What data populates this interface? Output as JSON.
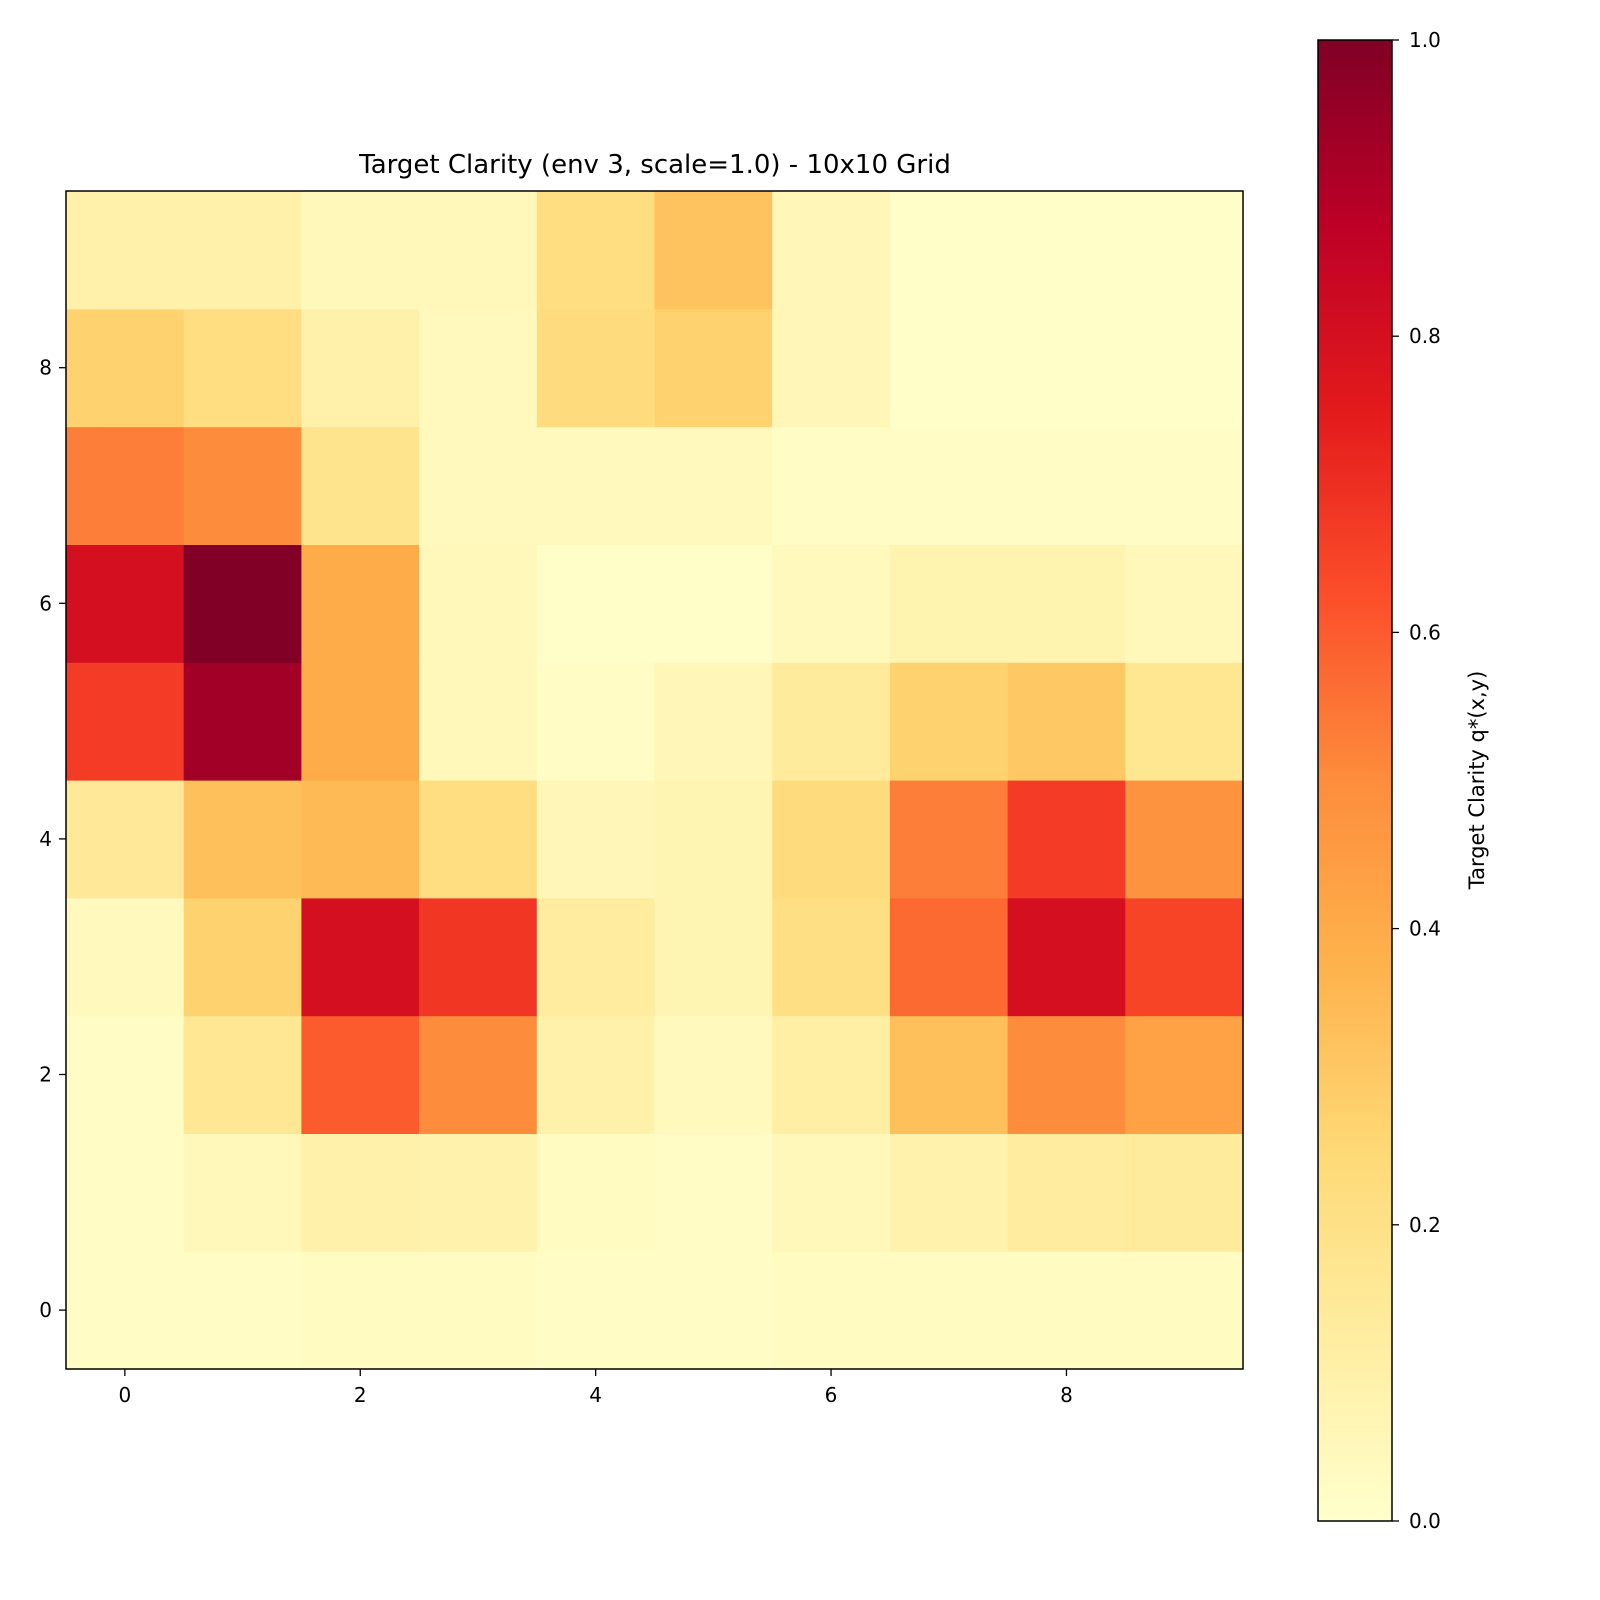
{
  "chart_data": {
    "type": "heatmap",
    "title": "Target Clarity (env 3, scale=1.0) - 10x10 Grid",
    "xlabel": "",
    "ylabel": "",
    "colorbar_label": "Target Clarity q*(x,y)",
    "colormap": "YlOrRd",
    "clim": [
      0.0,
      1.0
    ],
    "origin": "lower",
    "x": [
      0,
      1,
      2,
      3,
      4,
      5,
      6,
      7,
      8,
      9
    ],
    "y": [
      0,
      1,
      2,
      3,
      4,
      5,
      6,
      7,
      8,
      9
    ],
    "x_ticks": [
      "0",
      "2",
      "4",
      "6",
      "8"
    ],
    "y_ticks": [
      "0",
      "2",
      "4",
      "6",
      "8"
    ],
    "colorbar_ticks": [
      "0.0",
      "0.2",
      "0.4",
      "0.6",
      "0.8",
      "1.0"
    ],
    "z_rows_from_y0": [
      [
        0.02,
        0.02,
        0.03,
        0.03,
        0.02,
        0.02,
        0.03,
        0.03,
        0.03,
        0.03
      ],
      [
        0.02,
        0.05,
        0.1,
        0.09,
        0.03,
        0.02,
        0.05,
        0.09,
        0.13,
        0.14
      ],
      [
        0.02,
        0.16,
        0.6,
        0.5,
        0.1,
        0.04,
        0.11,
        0.33,
        0.5,
        0.43
      ],
      [
        0.04,
        0.27,
        0.8,
        0.68,
        0.13,
        0.07,
        0.21,
        0.57,
        0.8,
        0.65
      ],
      [
        0.15,
        0.33,
        0.35,
        0.22,
        0.06,
        0.07,
        0.23,
        0.53,
        0.67,
        0.48
      ],
      [
        0.67,
        0.93,
        0.4,
        0.05,
        0.02,
        0.06,
        0.14,
        0.27,
        0.3,
        0.17
      ],
      [
        0.8,
        1.0,
        0.4,
        0.05,
        0.01,
        0.01,
        0.04,
        0.08,
        0.08,
        0.05
      ],
      [
        0.53,
        0.5,
        0.18,
        0.04,
        0.04,
        0.04,
        0.02,
        0.02,
        0.02,
        0.02
      ],
      [
        0.27,
        0.22,
        0.1,
        0.04,
        0.23,
        0.27,
        0.06,
        0.01,
        0.01,
        0.01
      ],
      [
        0.1,
        0.1,
        0.05,
        0.05,
        0.22,
        0.32,
        0.06,
        0.01,
        0.01,
        0.01
      ]
    ],
    "grid": false,
    "colorbar_position": "right"
  }
}
